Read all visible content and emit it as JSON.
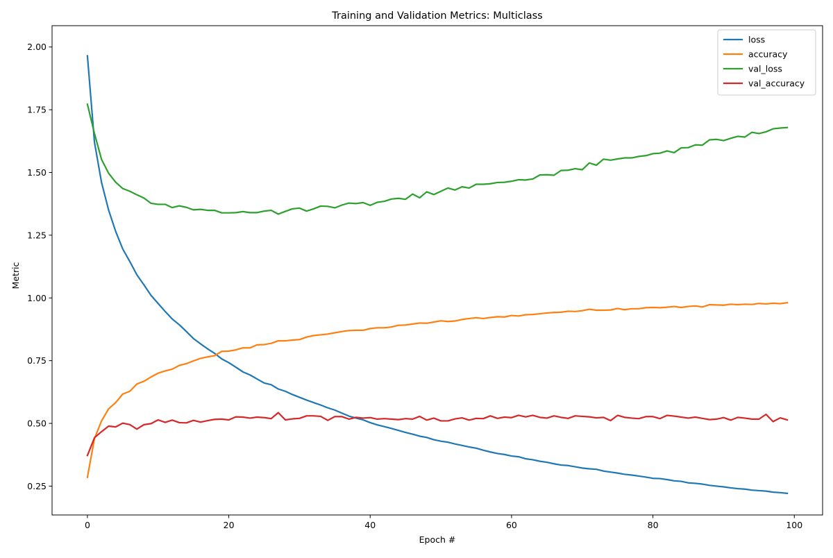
{
  "chart_data": {
    "type": "line",
    "title": "Training and Validation Metrics: Multiclass",
    "xlabel": "Epoch #",
    "ylabel": "Metric",
    "xlim": [
      -5,
      104
    ],
    "ylim": [
      0.135,
      2.085
    ],
    "xticks": [
      0,
      20,
      40,
      60,
      80,
      100
    ],
    "yticks": [
      0.25,
      0.5,
      0.75,
      1.0,
      1.25,
      1.5,
      1.75,
      2.0
    ],
    "grid": false,
    "legend_position": "top-right",
    "x": [
      0,
      1,
      2,
      3,
      4,
      5,
      6,
      7,
      8,
      9,
      10,
      11,
      12,
      13,
      14,
      15,
      16,
      17,
      18,
      19,
      20,
      21,
      22,
      23,
      24,
      25,
      26,
      27,
      28,
      29,
      30,
      31,
      32,
      33,
      34,
      35,
      36,
      37,
      38,
      39,
      40,
      41,
      42,
      43,
      44,
      45,
      46,
      47,
      48,
      49,
      50,
      51,
      52,
      53,
      54,
      55,
      56,
      57,
      58,
      59,
      60,
      61,
      62,
      63,
      64,
      65,
      66,
      67,
      68,
      69,
      70,
      71,
      72,
      73,
      74,
      75,
      76,
      77,
      78,
      79,
      80,
      81,
      82,
      83,
      84,
      85,
      86,
      87,
      88,
      89,
      90,
      91,
      92,
      93,
      94,
      95,
      96,
      97,
      98,
      99
    ],
    "series": [
      {
        "name": "loss",
        "color": "#1f77b4",
        "values": [
          1.965,
          1.62,
          1.46,
          1.35,
          1.265,
          1.195,
          1.145,
          1.092,
          1.052,
          1.01,
          0.978,
          0.946,
          0.916,
          0.893,
          0.866,
          0.838,
          0.817,
          0.797,
          0.779,
          0.757,
          0.742,
          0.724,
          0.705,
          0.693,
          0.677,
          0.661,
          0.654,
          0.637,
          0.628,
          0.615,
          0.604,
          0.593,
          0.583,
          0.573,
          0.562,
          0.553,
          0.541,
          0.529,
          0.521,
          0.514,
          0.503,
          0.494,
          0.487,
          0.48,
          0.472,
          0.464,
          0.457,
          0.449,
          0.444,
          0.435,
          0.429,
          0.425,
          0.418,
          0.412,
          0.406,
          0.401,
          0.393,
          0.386,
          0.38,
          0.376,
          0.37,
          0.367,
          0.359,
          0.355,
          0.349,
          0.345,
          0.339,
          0.334,
          0.332,
          0.327,
          0.322,
          0.319,
          0.317,
          0.31,
          0.306,
          0.302,
          0.297,
          0.294,
          0.29,
          0.286,
          0.281,
          0.28,
          0.276,
          0.271,
          0.269,
          0.263,
          0.261,
          0.258,
          0.253,
          0.25,
          0.247,
          0.243,
          0.24,
          0.238,
          0.234,
          0.232,
          0.23,
          0.226,
          0.224,
          0.221
        ]
      },
      {
        "name": "accuracy",
        "color": "#ff7f0e",
        "values": [
          0.285,
          0.44,
          0.51,
          0.558,
          0.583,
          0.617,
          0.628,
          0.657,
          0.668,
          0.685,
          0.7,
          0.709,
          0.716,
          0.731,
          0.738,
          0.749,
          0.759,
          0.765,
          0.77,
          0.787,
          0.788,
          0.793,
          0.801,
          0.801,
          0.813,
          0.814,
          0.819,
          0.829,
          0.829,
          0.832,
          0.834,
          0.844,
          0.85,
          0.853,
          0.856,
          0.861,
          0.866,
          0.87,
          0.871,
          0.871,
          0.878,
          0.881,
          0.881,
          0.884,
          0.891,
          0.892,
          0.896,
          0.9,
          0.899,
          0.904,
          0.909,
          0.906,
          0.908,
          0.914,
          0.918,
          0.921,
          0.918,
          0.922,
          0.925,
          0.924,
          0.93,
          0.928,
          0.933,
          0.934,
          0.937,
          0.94,
          0.942,
          0.943,
          0.947,
          0.946,
          0.949,
          0.955,
          0.951,
          0.951,
          0.952,
          0.958,
          0.953,
          0.957,
          0.957,
          0.961,
          0.962,
          0.961,
          0.963,
          0.966,
          0.962,
          0.966,
          0.968,
          0.964,
          0.973,
          0.972,
          0.971,
          0.975,
          0.973,
          0.975,
          0.974,
          0.978,
          0.976,
          0.979,
          0.977,
          0.981
        ]
      },
      {
        "name": "val_loss",
        "color": "#2ca02c",
        "values": [
          1.772,
          1.655,
          1.552,
          1.497,
          1.461,
          1.436,
          1.425,
          1.411,
          1.398,
          1.377,
          1.373,
          1.373,
          1.36,
          1.367,
          1.361,
          1.351,
          1.353,
          1.349,
          1.349,
          1.339,
          1.339,
          1.34,
          1.344,
          1.34,
          1.34,
          1.346,
          1.349,
          1.334,
          1.345,
          1.355,
          1.358,
          1.346,
          1.355,
          1.366,
          1.365,
          1.359,
          1.37,
          1.378,
          1.376,
          1.38,
          1.369,
          1.381,
          1.385,
          1.394,
          1.397,
          1.393,
          1.414,
          1.399,
          1.423,
          1.412,
          1.425,
          1.438,
          1.43,
          1.443,
          1.438,
          1.453,
          1.453,
          1.455,
          1.46,
          1.461,
          1.465,
          1.471,
          1.47,
          1.474,
          1.49,
          1.491,
          1.489,
          1.508,
          1.509,
          1.515,
          1.511,
          1.538,
          1.529,
          1.553,
          1.549,
          1.554,
          1.558,
          1.558,
          1.564,
          1.567,
          1.575,
          1.577,
          1.586,
          1.579,
          1.598,
          1.599,
          1.61,
          1.609,
          1.63,
          1.632,
          1.627,
          1.636,
          1.644,
          1.641,
          1.66,
          1.655,
          1.662,
          1.674,
          1.677,
          1.679
        ]
      },
      {
        "name": "val_accuracy",
        "color": "#d62728",
        "values": [
          0.372,
          0.443,
          0.467,
          0.489,
          0.486,
          0.501,
          0.495,
          0.477,
          0.495,
          0.499,
          0.514,
          0.504,
          0.513,
          0.503,
          0.502,
          0.512,
          0.505,
          0.511,
          0.516,
          0.517,
          0.514,
          0.526,
          0.525,
          0.521,
          0.525,
          0.523,
          0.519,
          0.543,
          0.514,
          0.518,
          0.52,
          0.53,
          0.53,
          0.528,
          0.512,
          0.527,
          0.527,
          0.517,
          0.524,
          0.521,
          0.523,
          0.517,
          0.519,
          0.517,
          0.515,
          0.519,
          0.517,
          0.528,
          0.513,
          0.521,
          0.51,
          0.51,
          0.518,
          0.522,
          0.513,
          0.52,
          0.519,
          0.53,
          0.52,
          0.525,
          0.523,
          0.532,
          0.526,
          0.532,
          0.524,
          0.521,
          0.53,
          0.524,
          0.52,
          0.53,
          0.528,
          0.526,
          0.522,
          0.524,
          0.511,
          0.532,
          0.524,
          0.521,
          0.519,
          0.527,
          0.527,
          0.519,
          0.532,
          0.529,
          0.525,
          0.521,
          0.525,
          0.52,
          0.515,
          0.517,
          0.523,
          0.513,
          0.524,
          0.521,
          0.517,
          0.517,
          0.536,
          0.507,
          0.522,
          0.514
        ]
      }
    ]
  }
}
